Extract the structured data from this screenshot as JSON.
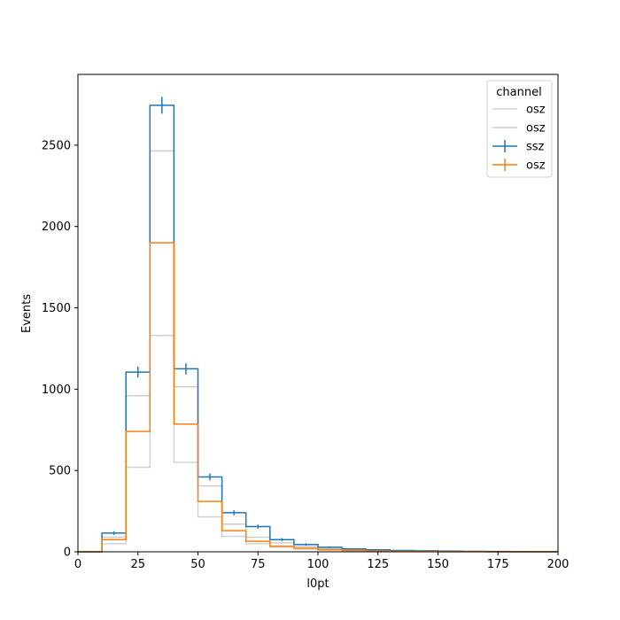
{
  "chart_data": {
    "type": "histogram-step",
    "xlabel": "l0pt",
    "ylabel": "Events",
    "xlim": [
      0,
      200
    ],
    "ylim": [
      0,
      2935
    ],
    "xticks": [
      0,
      25,
      50,
      75,
      100,
      125,
      150,
      175,
      200
    ],
    "yticks": [
      0,
      500,
      1000,
      1500,
      2000,
      2500
    ],
    "bin_edges": [
      0,
      10,
      20,
      30,
      40,
      50,
      60,
      70,
      80,
      90,
      100,
      110,
      120,
      130,
      140,
      150,
      160,
      170,
      180,
      190,
      200
    ],
    "legend": {
      "title": "channel",
      "placement": "top-right"
    },
    "series": [
      {
        "name": "osz",
        "color": "#d3d3d3",
        "values": [
          0,
          50,
          520,
          1330,
          550,
          215,
          95,
          50,
          28,
          18,
          10,
          7,
          5,
          3,
          2,
          1,
          1,
          0,
          0,
          0
        ]
      },
      {
        "name": "osz",
        "color": "#cccccc",
        "values": [
          0,
          90,
          960,
          2465,
          1015,
          405,
          170,
          90,
          55,
          32,
          20,
          14,
          9,
          6,
          4,
          3,
          2,
          1,
          1,
          0
        ]
      },
      {
        "name": "ssz",
        "color": "#1f77b4",
        "errorbars": true,
        "values": [
          0,
          115,
          1105,
          2745,
          1125,
          460,
          240,
          155,
          75,
          45,
          28,
          18,
          12,
          8,
          6,
          4,
          3,
          2,
          1,
          1
        ],
        "errors": [
          0,
          11,
          33,
          52,
          34,
          21,
          15,
          12,
          9,
          7,
          5,
          4,
          3,
          3,
          2,
          2,
          2,
          1,
          1,
          1
        ]
      },
      {
        "name": "osz",
        "color": "#ff7f0e",
        "errorbars": false,
        "values": [
          0,
          75,
          740,
          1900,
          785,
          310,
          130,
          65,
          35,
          22,
          13,
          8,
          5,
          3,
          2,
          1,
          1,
          0,
          0,
          0
        ]
      }
    ]
  }
}
